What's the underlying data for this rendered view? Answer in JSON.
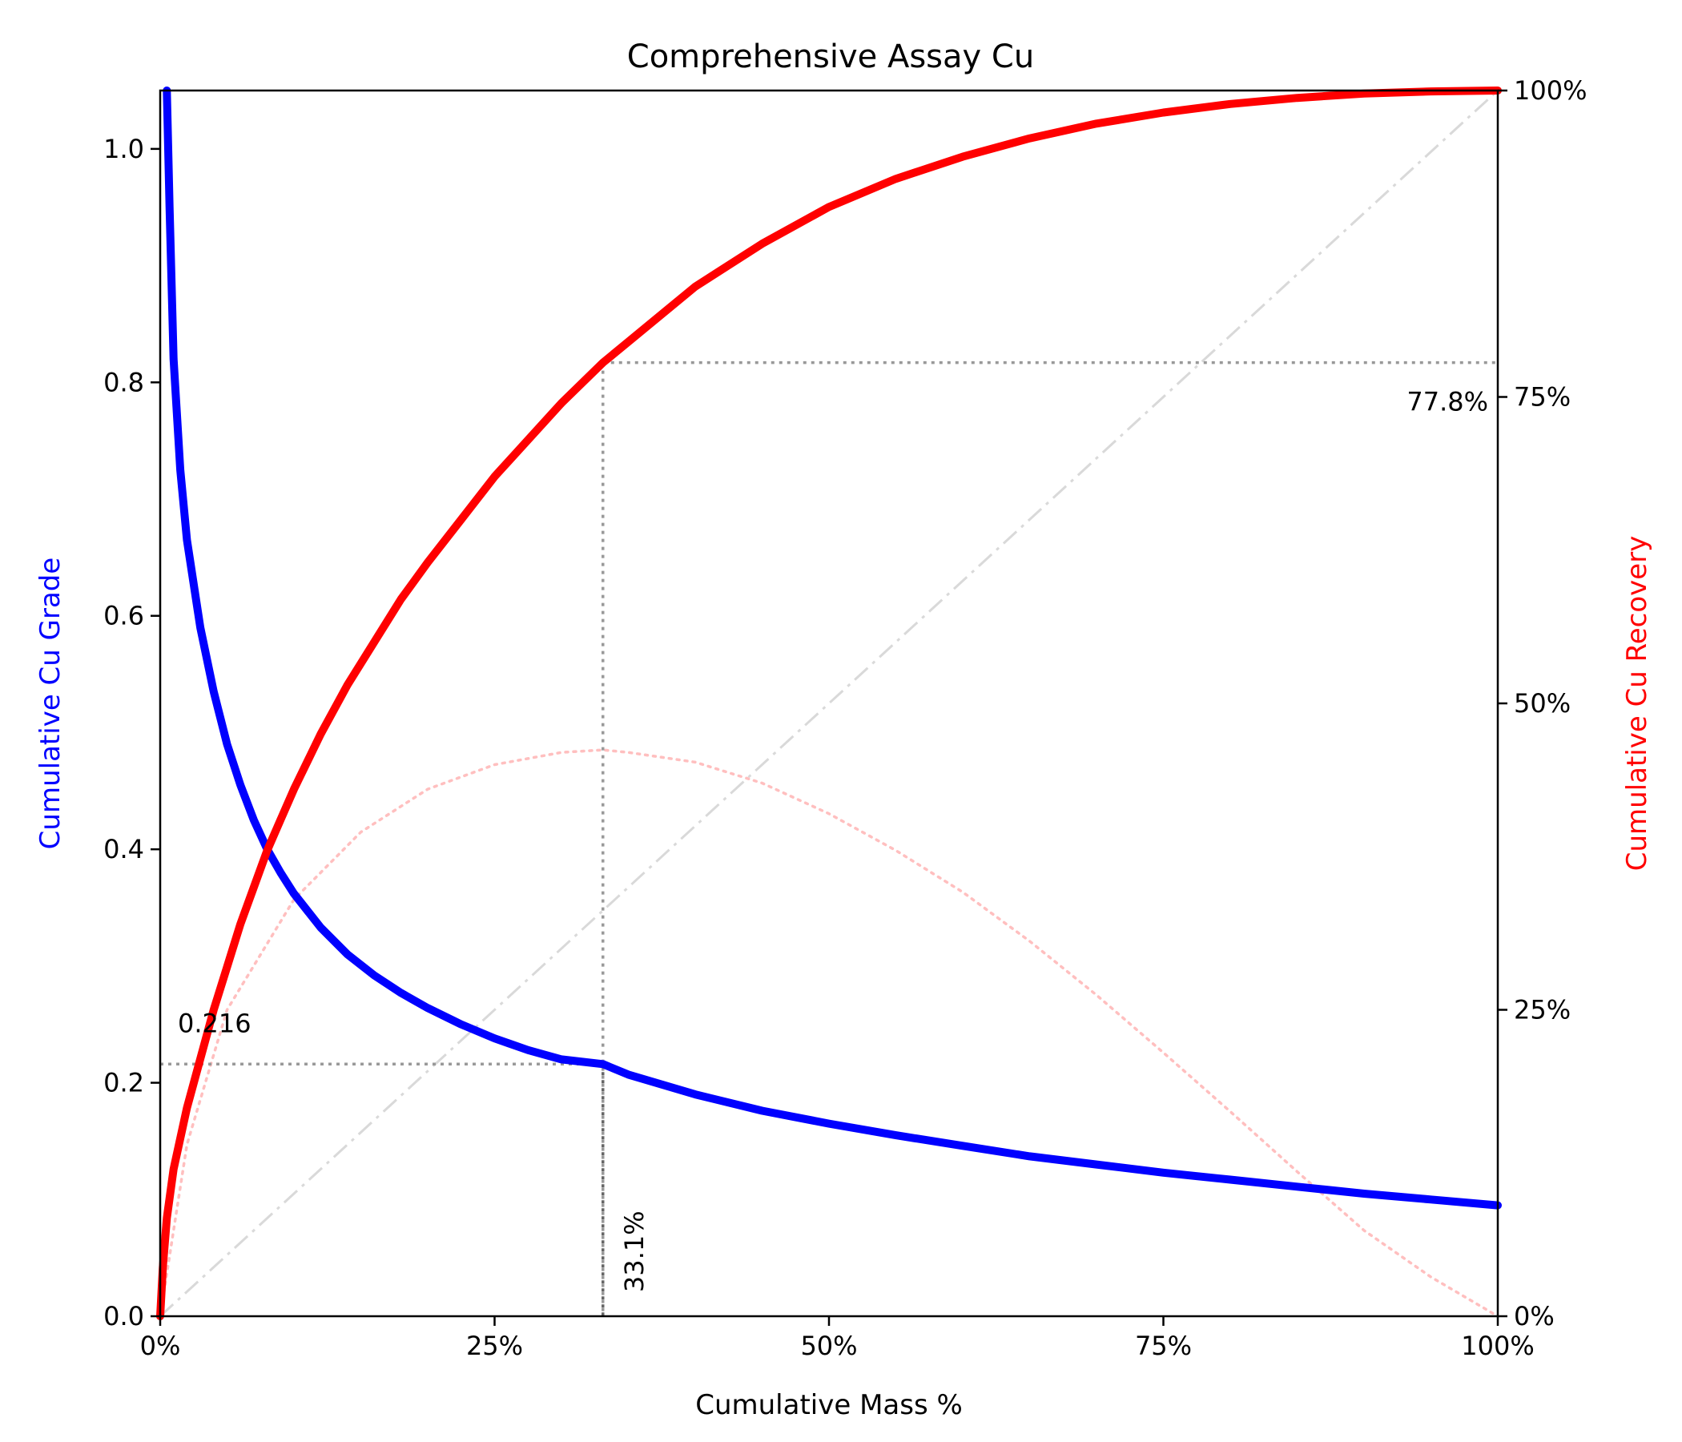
{
  "chart_data": {
    "type": "line",
    "title": "Comprehensive Assay Cu",
    "xlabel": "Cumulative Mass %",
    "ylabel_left": "Cumulative Cu Grade",
    "ylabel_right": "Cumulative Cu Recovery",
    "xlim": [
      0,
      100
    ],
    "ylim_left": [
      0,
      1.05
    ],
    "ylim_right": [
      0,
      100
    ],
    "grid": false,
    "x_ticks": [
      0,
      25,
      50,
      75,
      100
    ],
    "x_tick_labels": [
      "0%",
      "25%",
      "50%",
      "75%",
      "100%"
    ],
    "y_left_ticks": [
      0,
      0.2,
      0.4,
      0.6,
      0.8,
      1.0
    ],
    "y_left_tick_labels": [
      "0.0",
      "0.2",
      "0.4",
      "0.6",
      "0.8",
      "1.0"
    ],
    "y_right_ticks": [
      0,
      25,
      50,
      75,
      100
    ],
    "y_right_tick_labels": [
      "0%",
      "25%",
      "50%",
      "75%",
      "100%"
    ],
    "colors": {
      "grade": "#0000ff",
      "recovery": "#ff0000",
      "separation": "#ffbfbf",
      "diagonal": "#d9d9d9",
      "guide": "#999999",
      "guide_dark": "#666666"
    },
    "series": [
      {
        "axis": "left",
        "x": [
          0.5,
          0.7,
          1,
          1.5,
          2,
          3,
          4,
          5,
          6,
          7,
          8,
          9,
          10,
          12,
          14,
          16,
          18,
          20,
          22.5,
          25,
          27.5,
          30,
          33.1,
          35,
          40,
          45,
          50,
          55,
          60,
          65,
          70,
          75,
          80,
          85,
          90,
          95,
          100
        ],
        "y": [
          1.05,
          0.95,
          0.82,
          0.725,
          0.665,
          0.59,
          0.535,
          0.49,
          0.455,
          0.425,
          0.4,
          0.38,
          0.362,
          0.333,
          0.31,
          0.292,
          0.277,
          0.264,
          0.25,
          0.238,
          0.228,
          0.22,
          0.216,
          0.207,
          0.19,
          0.176,
          0.165,
          0.155,
          0.146,
          0.137,
          0.13,
          0.123,
          0.117,
          0.111,
          0.105,
          0.1,
          0.095
        ]
      },
      {
        "axis": "right",
        "x": [
          0,
          0.2,
          0.5,
          1,
          2,
          3,
          4,
          5,
          6,
          7,
          8,
          9,
          10,
          12,
          14,
          16,
          18,
          20,
          22.5,
          25,
          27.5,
          30,
          33.1,
          35,
          40,
          45,
          50,
          55,
          60,
          65,
          70,
          75,
          80,
          85,
          90,
          95,
          100
        ],
        "y": [
          0,
          4,
          8,
          12,
          17,
          21,
          25,
          28.5,
          32,
          35,
          38,
          40.5,
          43,
          47.5,
          51.5,
          55,
          58.5,
          61.5,
          65,
          68.5,
          71.5,
          74.5,
          77.8,
          79.5,
          84,
          87.5,
          90.5,
          92.8,
          94.6,
          96.1,
          97.3,
          98.2,
          98.9,
          99.4,
          99.75,
          99.93,
          100
        ]
      },
      {
        "axis": "right",
        "style": "dotted",
        "x": [
          0,
          2,
          5,
          10,
          15,
          20,
          25,
          30,
          33.1,
          35,
          40,
          45,
          50,
          55,
          60,
          65,
          70,
          75,
          80,
          85,
          90,
          95,
          100
        ],
        "y": [
          0,
          14,
          25,
          34,
          39.5,
          43,
          45,
          46,
          46.2,
          46,
          45.2,
          43.5,
          41,
          38,
          34.6,
          30.6,
          26.2,
          21.5,
          16.7,
          11.8,
          7,
          3.2,
          0
        ]
      },
      {
        "axis": "right",
        "style": "dash-dot",
        "x": [
          0,
          100
        ],
        "y": [
          0,
          100
        ]
      }
    ],
    "annotations": [
      {
        "text": "0.216",
        "axis": "left",
        "x": 33.1,
        "y": 0.216
      },
      {
        "text": "77.8%",
        "axis": "right",
        "x": 33.1,
        "y": 77.8
      },
      {
        "text": "33.1%",
        "axis": "bottom",
        "x": 33.1
      }
    ]
  }
}
